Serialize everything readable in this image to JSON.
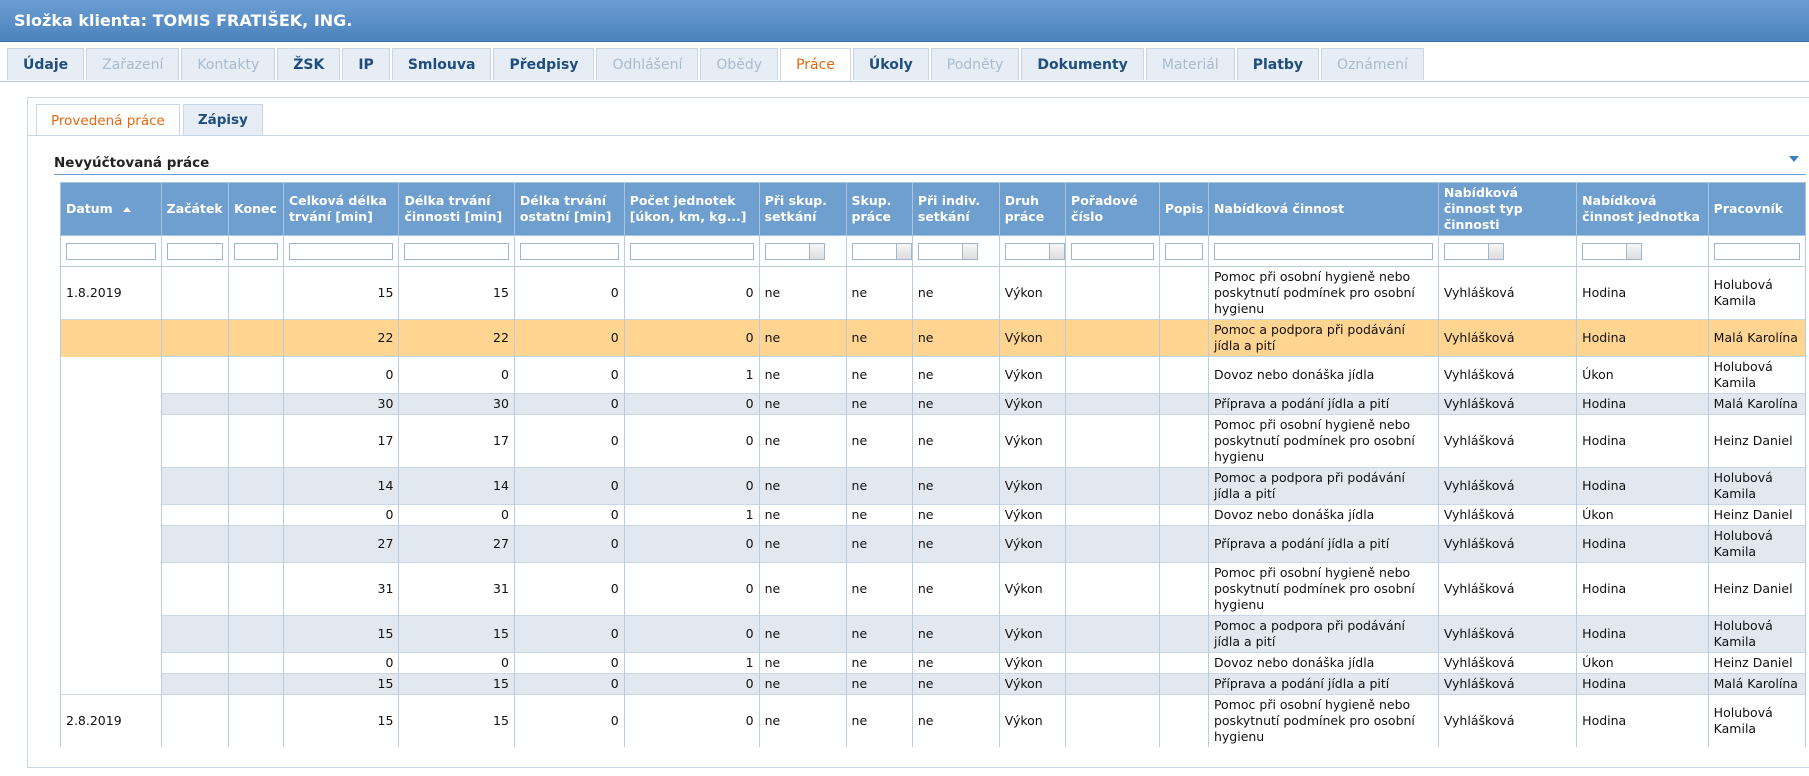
{
  "header": {
    "title": "Složka klienta: TOMIS FRATIŠEK, ING."
  },
  "tabs": [
    {
      "label": "Údaje",
      "state": "enabled"
    },
    {
      "label": "Zařazení",
      "state": "disabled"
    },
    {
      "label": "Kontakty",
      "state": "disabled"
    },
    {
      "label": "ŽSK",
      "state": "enabled"
    },
    {
      "label": "IP",
      "state": "enabled"
    },
    {
      "label": "Smlouva",
      "state": "enabled"
    },
    {
      "label": "Předpisy",
      "state": "enabled"
    },
    {
      "label": "Odhlášení",
      "state": "disabled"
    },
    {
      "label": "Obědy",
      "state": "disabled"
    },
    {
      "label": "Práce",
      "state": "active"
    },
    {
      "label": "Úkoly",
      "state": "enabled"
    },
    {
      "label": "Podněty",
      "state": "disabled"
    },
    {
      "label": "Dokumenty",
      "state": "enabled"
    },
    {
      "label": "Materiál",
      "state": "disabled"
    },
    {
      "label": "Platby",
      "state": "enabled"
    },
    {
      "label": "Oznámení",
      "state": "disabled"
    }
  ],
  "subtabs": [
    {
      "label": "Provedená práce",
      "state": "active"
    },
    {
      "label": "Zápisy",
      "state": "enabled"
    }
  ],
  "section_title": "Nevyúčtovaná práce",
  "table": {
    "columns": [
      {
        "label": "Datum",
        "filter": "text"
      },
      {
        "label": "Začátek",
        "filter": "text"
      },
      {
        "label": "Konec",
        "filter": "text"
      },
      {
        "label": "Celková délka trvání [min]",
        "filter": "text"
      },
      {
        "label": "Délka trvání činnosti [min]",
        "filter": "text"
      },
      {
        "label": "Délka trvání ostatní [min]",
        "filter": "text"
      },
      {
        "label": "Počet jednotek [úkon, km, kg...]",
        "filter": "text"
      },
      {
        "label": "Při skup. setkání",
        "filter": "select"
      },
      {
        "label": "Skup. práce",
        "filter": "select"
      },
      {
        "label": "Při indiv. setkání",
        "filter": "select"
      },
      {
        "label": "Druh práce",
        "filter": "select"
      },
      {
        "label": "Pořadové číslo",
        "filter": "text"
      },
      {
        "label": "Popis",
        "filter": "text"
      },
      {
        "label": "Nabídková činnost",
        "filter": "text"
      },
      {
        "label": "Nabídková činnost typ činnosti",
        "filter": "select"
      },
      {
        "label": "Nabídková činnost jednotka",
        "filter": "select"
      },
      {
        "label": "Pracovník",
        "filter": "text"
      }
    ],
    "selected_row": 1,
    "rows": [
      [
        "1.8.2019",
        null,
        null,
        15,
        15,
        0,
        0,
        "ne",
        "ne",
        "ne",
        "Výkon",
        null,
        null,
        "Pomoc při osobní hygieně nebo poskytnutí podmínek pro osobní hygienu",
        "Vyhlášková",
        "Hodina",
        "Holubová Kamila"
      ],
      [
        null,
        null,
        null,
        22,
        22,
        0,
        0,
        "ne",
        "ne",
        "ne",
        "Výkon",
        null,
        null,
        "Pomoc a podpora při podávání jídla a pití",
        "Vyhlášková",
        "Hodina",
        "Malá Karolína"
      ],
      [
        null,
        null,
        null,
        0,
        0,
        0,
        1,
        "ne",
        "ne",
        "ne",
        "Výkon",
        null,
        null,
        "Dovoz nebo donáška jídla",
        "Vyhlášková",
        "Úkon",
        "Holubová Kamila"
      ],
      [
        null,
        null,
        null,
        30,
        30,
        0,
        0,
        "ne",
        "ne",
        "ne",
        "Výkon",
        null,
        null,
        "Příprava a podání jídla a pití",
        "Vyhlášková",
        "Hodina",
        "Malá Karolína"
      ],
      [
        null,
        null,
        null,
        17,
        17,
        0,
        0,
        "ne",
        "ne",
        "ne",
        "Výkon",
        null,
        null,
        "Pomoc při osobní hygieně nebo poskytnutí podmínek pro osobní hygienu",
        "Vyhlášková",
        "Hodina",
        "Heinz Daniel"
      ],
      [
        null,
        null,
        null,
        14,
        14,
        0,
        0,
        "ne",
        "ne",
        "ne",
        "Výkon",
        null,
        null,
        "Pomoc a podpora při podávání jídla a pití",
        "Vyhlášková",
        "Hodina",
        "Holubová Kamila"
      ],
      [
        null,
        null,
        null,
        0,
        0,
        0,
        1,
        "ne",
        "ne",
        "ne",
        "Výkon",
        null,
        null,
        "Dovoz nebo donáška jídla",
        "Vyhlášková",
        "Úkon",
        "Heinz Daniel"
      ],
      [
        null,
        null,
        null,
        27,
        27,
        0,
        0,
        "ne",
        "ne",
        "ne",
        "Výkon",
        null,
        null,
        "Příprava a podání jídla a pití",
        "Vyhlášková",
        "Hodina",
        "Holubová Kamila"
      ],
      [
        null,
        null,
        null,
        31,
        31,
        0,
        0,
        "ne",
        "ne",
        "ne",
        "Výkon",
        null,
        null,
        "Pomoc při osobní hygieně nebo poskytnutí podmínek pro osobní hygienu",
        "Vyhlášková",
        "Hodina",
        "Heinz Daniel"
      ],
      [
        null,
        null,
        null,
        15,
        15,
        0,
        0,
        "ne",
        "ne",
        "ne",
        "Výkon",
        null,
        null,
        "Pomoc a podpora při podávání jídla a pití",
        "Vyhlášková",
        "Hodina",
        "Holubová Kamila"
      ],
      [
        null,
        null,
        null,
        0,
        0,
        0,
        1,
        "ne",
        "ne",
        "ne",
        "Výkon",
        null,
        null,
        "Dovoz nebo donáška jídla",
        "Vyhlášková",
        "Úkon",
        "Heinz Daniel"
      ],
      [
        null,
        null,
        null,
        15,
        15,
        0,
        0,
        "ne",
        "ne",
        "ne",
        "Výkon",
        null,
        null,
        "Příprava a podání jídla a pití",
        "Vyhlášková",
        "Hodina",
        "Malá Karolína"
      ],
      [
        "2.8.2019",
        null,
        null,
        15,
        15,
        0,
        0,
        "ne",
        "ne",
        "ne",
        "Výkon",
        null,
        null,
        "Pomoc při osobní hygieně nebo poskytnutí podmínek pro osobní hygienu",
        "Vyhlášková",
        "Hodina",
        "Holubová Kamila"
      ]
    ]
  }
}
